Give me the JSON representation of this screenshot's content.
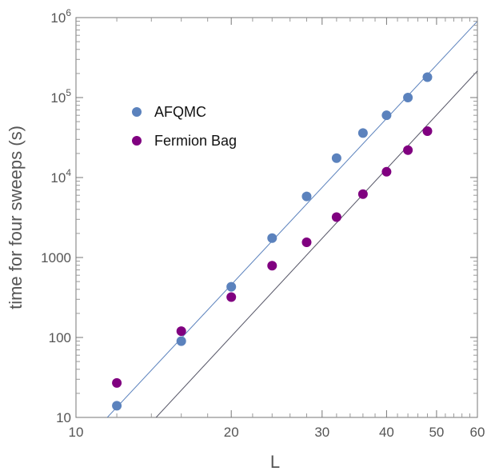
{
  "chart_data": {
    "type": "scatter",
    "xlabel": "L",
    "ylabel": "time for four sweeps (s)",
    "x_scale": "log",
    "y_scale": "log",
    "xlim": [
      10,
      60
    ],
    "ylim": [
      10,
      1000000
    ],
    "grid": false,
    "legend_position": "upper-left",
    "x_ticks": [
      {
        "value": 10,
        "label": "10"
      },
      {
        "value": 20,
        "label": "20"
      },
      {
        "value": 30,
        "label": "30"
      },
      {
        "value": 40,
        "label": "40"
      },
      {
        "value": 50,
        "label": "50"
      },
      {
        "value": 60,
        "label": "60"
      }
    ],
    "y_ticks": [
      {
        "value": 10,
        "label": "10",
        "exp": ""
      },
      {
        "value": 100,
        "label": "100",
        "exp": ""
      },
      {
        "value": 1000,
        "label": "1000",
        "exp": ""
      },
      {
        "value": 10000,
        "label": "10",
        "exp": "4"
      },
      {
        "value": 100000,
        "label": "10",
        "exp": "5"
      },
      {
        "value": 1000000,
        "label": "10",
        "exp": "6"
      }
    ],
    "series": [
      {
        "name": "AFQMC",
        "color": "#5b82bd",
        "points": [
          {
            "x": 12,
            "y": 14
          },
          {
            "x": 16,
            "y": 90
          },
          {
            "x": 20,
            "y": 430
          },
          {
            "x": 24,
            "y": 1750
          },
          {
            "x": 28,
            "y": 5800
          },
          {
            "x": 32,
            "y": 17500
          },
          {
            "x": 36,
            "y": 36000
          },
          {
            "x": 40,
            "y": 60000
          },
          {
            "x": 44,
            "y": 100000
          },
          {
            "x": 48,
            "y": 180000
          }
        ],
        "fit_line": {
          "color": "#5b82bd",
          "from": {
            "x": 11.5,
            "y": 10
          },
          "to": {
            "x": 60,
            "y": 900000
          }
        }
      },
      {
        "name": "Fermion Bag",
        "color": "#800080",
        "points": [
          {
            "x": 12,
            "y": 27
          },
          {
            "x": 16,
            "y": 120
          },
          {
            "x": 20,
            "y": 320
          },
          {
            "x": 24,
            "y": 790
          },
          {
            "x": 28,
            "y": 1550
          },
          {
            "x": 32,
            "y": 3200
          },
          {
            "x": 36,
            "y": 6200
          },
          {
            "x": 40,
            "y": 11800
          },
          {
            "x": 44,
            "y": 22000
          },
          {
            "x": 48,
            "y": 38000
          }
        ],
        "fit_line": {
          "color": "#555566",
          "from": {
            "x": 14.3,
            "y": 10
          },
          "to": {
            "x": 60,
            "y": 215000
          }
        }
      }
    ]
  }
}
